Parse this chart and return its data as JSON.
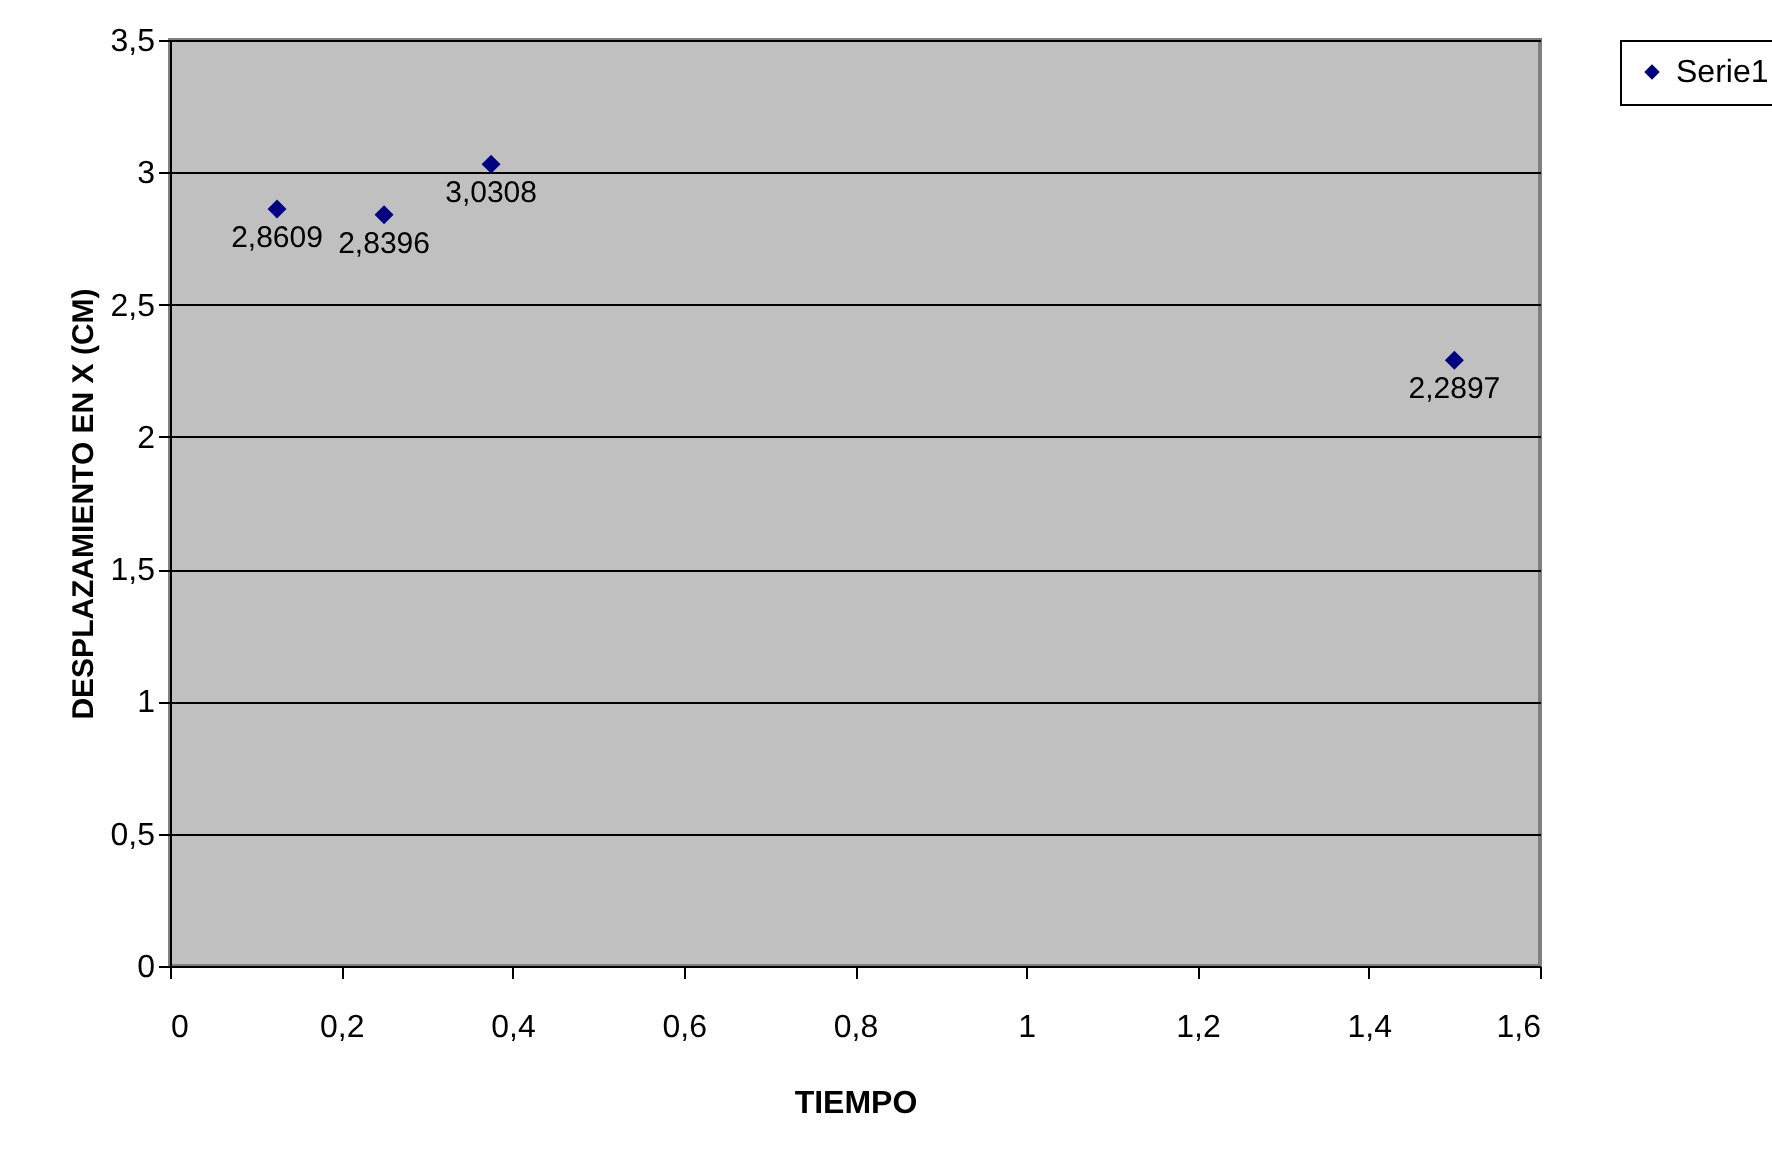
{
  "chart_data": {
    "type": "scatter",
    "xlabel": "TIEMPO",
    "ylabel": "DESPLAZAMIENTO EN X (CM)",
    "x": [
      0.125,
      0.25,
      0.375,
      1.5
    ],
    "series": [
      {
        "name": "Serie1",
        "color": "#000080",
        "values": [
          2.8609,
          2.8396,
          3.0308,
          2.2897
        ],
        "value_labels": [
          "2,8609",
          "2,8396",
          "3,0308",
          "2,2897"
        ]
      }
    ],
    "xlim": [
      0,
      1.6
    ],
    "xticks": [
      0,
      {
        "value": 0.2,
        "label": "0,2"
      },
      {
        "value": 0.4,
        "label": "0,4"
      },
      {
        "value": 0.6,
        "label": "0,6"
      },
      {
        "value": 0.8,
        "label": "0,8"
      },
      1,
      {
        "value": 1.2,
        "label": "1,2"
      },
      {
        "value": 1.4,
        "label": "1,4"
      },
      {
        "value": 1.6,
        "label": "1,6"
      }
    ],
    "ylim": [
      0,
      3.5
    ],
    "yticks": [
      0,
      {
        "value": 0.5,
        "label": "0,5"
      },
      1,
      {
        "value": 1.5,
        "label": "1,5"
      },
      2,
      {
        "value": 2.5,
        "label": "2,5"
      },
      3,
      {
        "value": 3.5,
        "label": "3,5"
      }
    ],
    "grid": "y",
    "legend": "right",
    "marker": "diamond"
  }
}
